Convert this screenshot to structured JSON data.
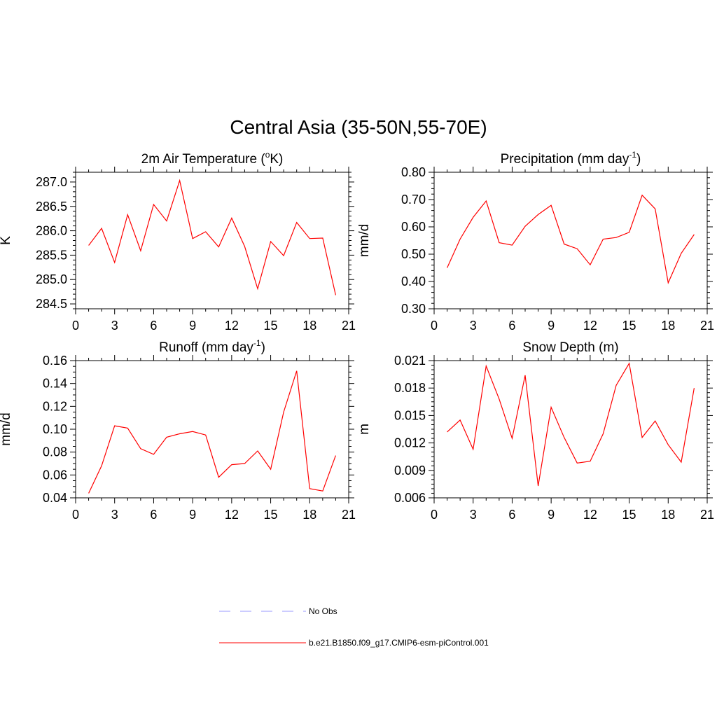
{
  "figure": {
    "title": "Central Asia (35-50N,55-70E)"
  },
  "chart_data": [
    {
      "type": "line",
      "title_main": "2m Air Temperature (",
      "title_sup": "o",
      "title_end": "K)",
      "ylabel": "K",
      "xlabel": "",
      "xlim": [
        0,
        21
      ],
      "ylim": [
        284.4,
        287.2
      ],
      "xticks": [
        0,
        3,
        6,
        9,
        12,
        15,
        18,
        21
      ],
      "yticks": [
        284.5,
        285.0,
        285.5,
        286.0,
        286.5,
        287.0
      ],
      "ytick_labels": [
        "284.5",
        "285.0",
        "285.5",
        "286.0",
        "286.5",
        "287.0"
      ],
      "yminor_step": 0.1,
      "x": [
        1,
        2,
        3,
        4,
        5,
        6,
        7,
        8,
        9,
        10,
        11,
        12,
        13,
        14,
        15,
        16,
        17,
        18,
        19,
        20
      ],
      "series": [
        {
          "name": "b.e21.B1850.f09_g17.CMIP6-esm-piControl.001",
          "color": "#ff0000",
          "values": [
            285.7,
            286.05,
            285.35,
            286.33,
            285.59,
            286.54,
            286.2,
            287.03,
            285.84,
            285.98,
            285.67,
            286.26,
            285.68,
            284.81,
            285.78,
            285.49,
            286.17,
            285.84,
            285.85,
            284.68
          ]
        }
      ]
    },
    {
      "type": "line",
      "title_main": "Precipitation (mm day",
      "title_sup": "-1",
      "title_end": ")",
      "ylabel": "mm/d",
      "xlabel": "",
      "xlim": [
        0,
        21
      ],
      "ylim": [
        0.3,
        0.8
      ],
      "xticks": [
        0,
        3,
        6,
        9,
        12,
        15,
        18,
        21
      ],
      "yticks": [
        0.3,
        0.4,
        0.5,
        0.6,
        0.7,
        0.8
      ],
      "ytick_labels": [
        "0.30",
        "0.40",
        "0.50",
        "0.60",
        "0.70",
        "0.80"
      ],
      "yminor_step": 0.02,
      "x": [
        1,
        2,
        3,
        4,
        5,
        6,
        7,
        8,
        9,
        10,
        11,
        12,
        13,
        14,
        15,
        16,
        17,
        18,
        19,
        20
      ],
      "series": [
        {
          "name": "b.e21.B1850.f09_g17.CMIP6-esm-piControl.001",
          "color": "#ff0000",
          "values": [
            0.45,
            0.555,
            0.635,
            0.695,
            0.542,
            0.533,
            0.602,
            0.645,
            0.679,
            0.537,
            0.52,
            0.461,
            0.555,
            0.561,
            0.58,
            0.716,
            0.666,
            0.395,
            0.503,
            0.572
          ]
        }
      ]
    },
    {
      "type": "line",
      "title_main": "Runoff (mm day",
      "title_sup": "-1",
      "title_end": ")",
      "ylabel": "mm/d",
      "xlabel": "",
      "xlim": [
        0,
        21
      ],
      "ylim": [
        0.04,
        0.16
      ],
      "xticks": [
        0,
        3,
        6,
        9,
        12,
        15,
        18,
        21
      ],
      "yticks": [
        0.04,
        0.06,
        0.08,
        0.1,
        0.12,
        0.14,
        0.16
      ],
      "ytick_labels": [
        "0.04",
        "0.06",
        "0.08",
        "0.10",
        "0.12",
        "0.14",
        "0.16"
      ],
      "yminor_step": 0.005,
      "x": [
        1,
        2,
        3,
        4,
        5,
        6,
        7,
        8,
        9,
        10,
        11,
        12,
        13,
        14,
        15,
        16,
        17,
        18,
        19,
        20
      ],
      "series": [
        {
          "name": "b.e21.B1850.f09_g17.CMIP6-esm-piControl.001",
          "color": "#ff0000",
          "values": [
            0.044,
            0.068,
            0.103,
            0.101,
            0.083,
            0.078,
            0.093,
            0.096,
            0.098,
            0.095,
            0.058,
            0.069,
            0.07,
            0.081,
            0.065,
            0.115,
            0.151,
            0.048,
            0.046,
            0.077
          ]
        }
      ]
    },
    {
      "type": "line",
      "title_main": "Snow Depth (m)",
      "title_sup": "",
      "title_end": "",
      "ylabel": "m",
      "xlabel": "",
      "xlim": [
        0,
        21
      ],
      "ylim": [
        0.006,
        0.021
      ],
      "xticks": [
        0,
        3,
        6,
        9,
        12,
        15,
        18,
        21
      ],
      "yticks": [
        0.006,
        0.009,
        0.012,
        0.015,
        0.018,
        0.021
      ],
      "ytick_labels": [
        "0.006",
        "0.009",
        "0.012",
        "0.015",
        "0.018",
        "0.021"
      ],
      "yminor_step": 0.0005,
      "x": [
        1,
        2,
        3,
        4,
        5,
        6,
        7,
        8,
        9,
        10,
        11,
        12,
        13,
        14,
        15,
        16,
        17,
        18,
        19,
        20
      ],
      "series": [
        {
          "name": "b.e21.B1850.f09_g17.CMIP6-esm-piControl.001",
          "color": "#ff0000",
          "values": [
            0.0132,
            0.0145,
            0.0113,
            0.0204,
            0.0168,
            0.0125,
            0.0194,
            0.0073,
            0.0159,
            0.0126,
            0.0098,
            0.01,
            0.013,
            0.0183,
            0.0207,
            0.0126,
            0.0144,
            0.0118,
            0.0099,
            0.018
          ]
        }
      ]
    }
  ],
  "legend": {
    "placement": "bottom-center",
    "items": [
      {
        "label": "No Obs",
        "color": "#9999ff",
        "style": "dashed"
      },
      {
        "label": "b.e21.B1850.f09_g17.CMIP6-esm-piControl.001",
        "color": "#ff0000",
        "style": "solid"
      }
    ]
  }
}
